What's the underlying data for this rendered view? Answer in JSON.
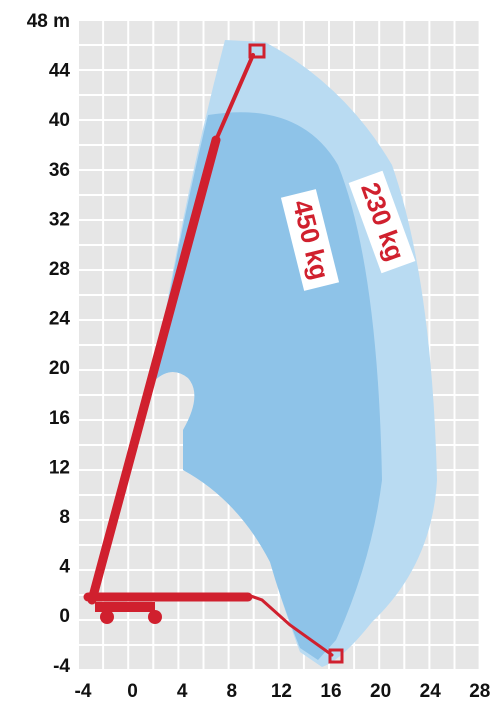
{
  "y_axis": {
    "labels": [
      "48 m",
      "44",
      "40",
      "36",
      "32",
      "28",
      "24",
      "20",
      "16",
      "12",
      "8",
      "4",
      "0",
      "-4"
    ]
  },
  "x_axis": {
    "labels": [
      "-4",
      "0",
      "4",
      "8",
      "12",
      "16",
      "20",
      "24",
      "28"
    ]
  },
  "load_labels": {
    "inner": "450 kg",
    "outer": "230 kg"
  }
}
